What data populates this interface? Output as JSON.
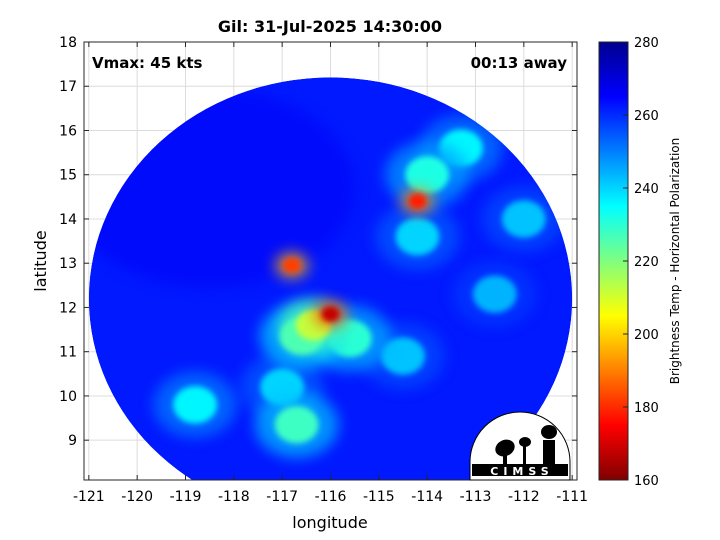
{
  "chart_data": {
    "type": "heatmap",
    "title": "Gil: 31-Jul-2025 14:30:00",
    "xlabel": "longitude",
    "ylabel": "latitude",
    "xlim": [
      -121.1,
      -110.9
    ],
    "ylim": [
      8.1,
      18.0
    ],
    "xticks": [
      -121,
      -120,
      -119,
      -118,
      -117,
      -116,
      -115,
      -114,
      -113,
      -112,
      -111
    ],
    "yticks": [
      9,
      10,
      11,
      12,
      13,
      14,
      15,
      16,
      17,
      18
    ],
    "grid": true,
    "annotations": {
      "vmax": "Vmax: 45 kts",
      "time_away": "00:13 away"
    },
    "colorbar": {
      "label": "Brightness Temp - Horizontal Polarization",
      "range": [
        160,
        280
      ],
      "ticks": [
        160,
        180,
        200,
        220,
        240,
        260,
        280
      ],
      "colormap": "jet"
    },
    "swath": {
      "center_lon": -116.0,
      "center_lat": 12.2,
      "radius_deg": 5.0,
      "background_value": 262
    },
    "features": [
      {
        "lon": -116.0,
        "lat": 11.85,
        "value": 168
      },
      {
        "lon": -116.35,
        "lat": 11.6,
        "value": 212
      },
      {
        "lon": -116.6,
        "lat": 11.35,
        "value": 226
      },
      {
        "lon": -115.6,
        "lat": 11.3,
        "value": 230
      },
      {
        "lon": -116.8,
        "lat": 12.95,
        "value": 182
      },
      {
        "lon": -114.2,
        "lat": 14.4,
        "value": 178
      },
      {
        "lon": -114.0,
        "lat": 15.0,
        "value": 232
      },
      {
        "lon": -113.3,
        "lat": 15.6,
        "value": 236
      },
      {
        "lon": -114.2,
        "lat": 13.6,
        "value": 240
      },
      {
        "lon": -112.0,
        "lat": 14.0,
        "value": 242
      },
      {
        "lon": -118.8,
        "lat": 9.8,
        "value": 236
      },
      {
        "lon": -117.0,
        "lat": 10.2,
        "value": 240
      },
      {
        "lon": -116.7,
        "lat": 9.35,
        "value": 228
      },
      {
        "lon": -114.5,
        "lat": 10.9,
        "value": 242
      },
      {
        "lon": -112.6,
        "lat": 12.3,
        "value": 244
      }
    ]
  },
  "logo": {
    "text": "CIMSS"
  }
}
